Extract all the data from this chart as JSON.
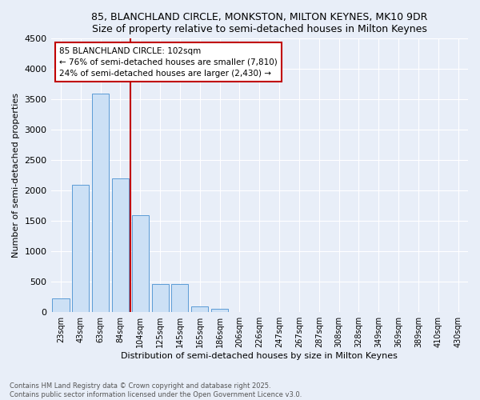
{
  "title1": "85, BLANCHLAND CIRCLE, MONKSTON, MILTON KEYNES, MK10 9DR",
  "title2": "Size of property relative to semi-detached houses in Milton Keynes",
  "xlabel": "Distribution of semi-detached houses by size in Milton Keynes",
  "ylabel": "Number of semi-detached properties",
  "categories": [
    "23sqm",
    "43sqm",
    "63sqm",
    "84sqm",
    "104sqm",
    "125sqm",
    "145sqm",
    "165sqm",
    "186sqm",
    "206sqm",
    "226sqm",
    "247sqm",
    "267sqm",
    "287sqm",
    "308sqm",
    "328sqm",
    "349sqm",
    "369sqm",
    "389sqm",
    "410sqm",
    "430sqm"
  ],
  "values": [
    230,
    2100,
    3600,
    2200,
    1600,
    460,
    460,
    100,
    60,
    0,
    0,
    0,
    0,
    0,
    0,
    0,
    0,
    0,
    0,
    0,
    0
  ],
  "bar_color": "#cce0f5",
  "bar_edge_color": "#5b9bd5",
  "vline_color": "#c00000",
  "annotation_text": "85 BLANCHLAND CIRCLE: 102sqm\n← 76% of semi-detached houses are smaller (7,810)\n24% of semi-detached houses are larger (2,430) →",
  "annotation_box_color": "#c00000",
  "ylim": [
    0,
    4500
  ],
  "yticks": [
    0,
    500,
    1000,
    1500,
    2000,
    2500,
    3000,
    3500,
    4000,
    4500
  ],
  "footer1": "Contains HM Land Registry data © Crown copyright and database right 2025.",
  "footer2": "Contains public sector information licensed under the Open Government Licence v3.0.",
  "bg_color": "#e8eef8",
  "plot_bg_color": "#e8eef8",
  "grid_color": "#ffffff",
  "vline_index": 3.5
}
